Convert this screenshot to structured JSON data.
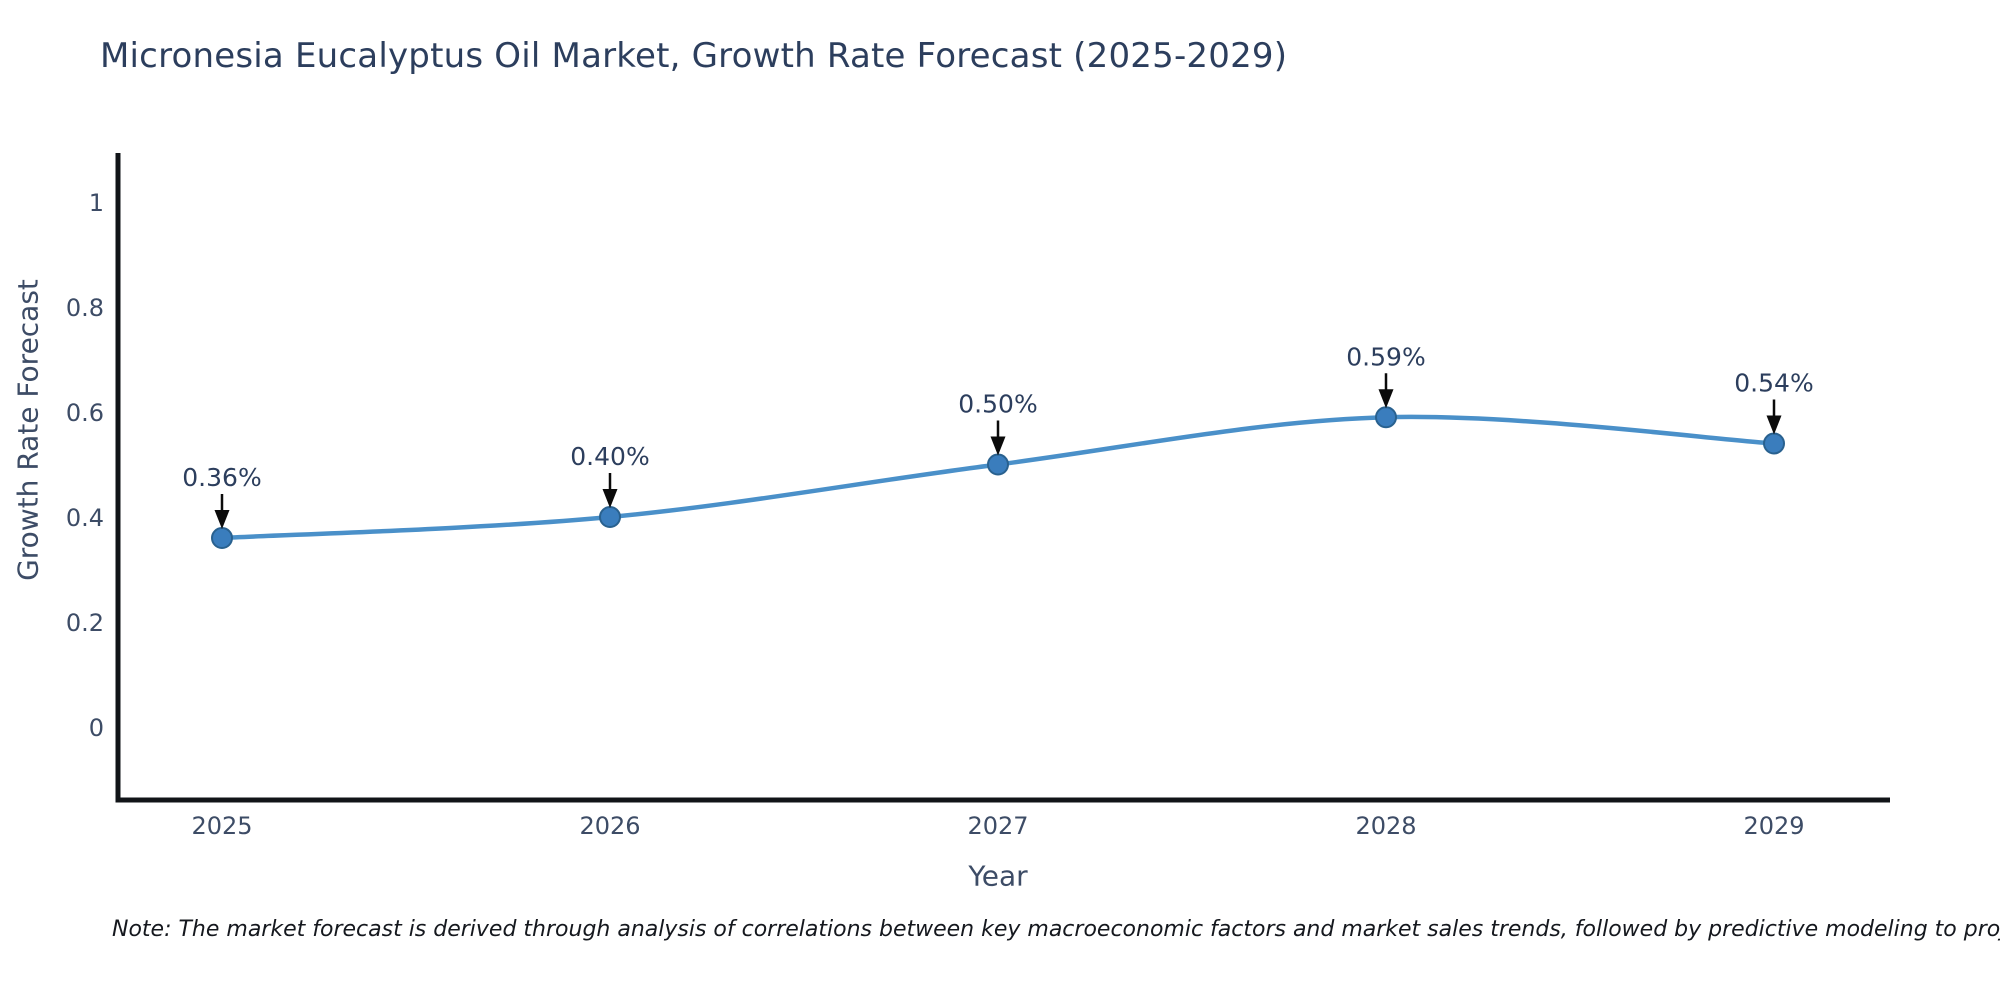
{
  "chart": {
    "title": "Micronesia Eucalyptus Oil Market, Growth Rate Forecast (2025-2029)",
    "ylabel": "Growth Rate Forecast",
    "xlabel": "Year",
    "note": "Note: The market forecast is derived through analysis of correlations between key macroeconomic factors and market sales trends, followed by predictive modeling to project future sales"
  },
  "chart_data": {
    "type": "line",
    "line_shape": "spline",
    "x": [
      2025,
      2026,
      2027,
      2028,
      2029
    ],
    "categories": [
      "2025",
      "2026",
      "2027",
      "2028",
      "2029"
    ],
    "series": [
      {
        "name": "Growth Rate Forecast",
        "values": [
          0.36,
          0.4,
          0.5,
          0.59,
          0.54
        ]
      }
    ],
    "point_labels": [
      "0.36%",
      "0.40%",
      "0.50%",
      "0.59%",
      "0.54%"
    ],
    "title": "Micronesia Eucalyptus Oil Market, Growth Rate Forecast (2025-2029)",
    "xlabel": "Year",
    "ylabel": "Growth Rate Forecast",
    "yticks": [
      0,
      0.2,
      0.4,
      0.6,
      0.8,
      1
    ],
    "ytick_labels": [
      "0",
      "0.2",
      "0.4",
      "0.6",
      "0.8",
      "1"
    ],
    "ylim": [
      -0.14,
      1.23
    ],
    "grid": false,
    "legend": "none",
    "annotations": "arrow-down-to-point",
    "colors": {
      "line": "#4a90c9",
      "marker_fill": "#3a7dbd",
      "marker_edge": "#29618f",
      "axis_spine": "#111418",
      "arrow": "#0b0b0b",
      "title_text": "#2c3e5d",
      "tick_text": "#3d4c66",
      "note_text": "#15181e",
      "background": "#ffffff"
    }
  }
}
